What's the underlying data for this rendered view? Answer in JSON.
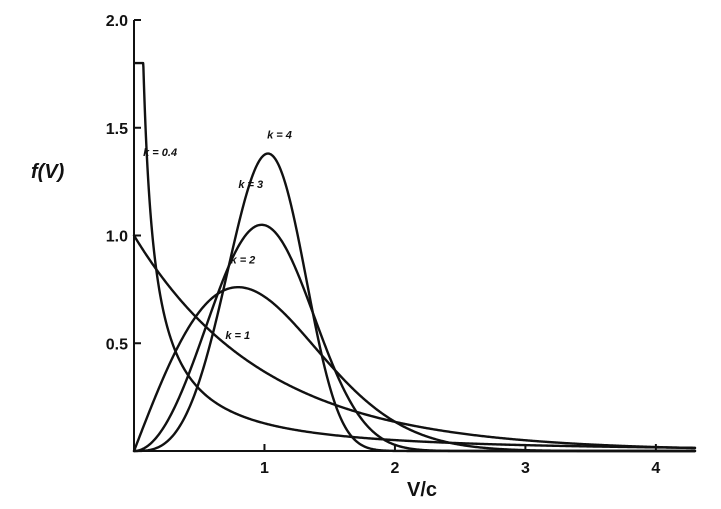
{
  "chart_data": {
    "type": "line",
    "title": "",
    "xlabel": "V/c",
    "ylabel": "f(V)",
    "xlim": [
      0,
      4.3
    ],
    "ylim": [
      0,
      2.0
    ],
    "x_ticks": [
      {
        "value": 1,
        "label": "1"
      },
      {
        "value": 2,
        "label": "2"
      },
      {
        "value": 3,
        "label": "3"
      },
      {
        "value": 4,
        "label": "4"
      }
    ],
    "y_ticks": [
      {
        "value": 0.5,
        "label": "0.5"
      },
      {
        "value": 1.0,
        "label": "1.0"
      },
      {
        "value": 1.5,
        "label": "1.5"
      },
      {
        "value": 2.0,
        "label": "2.0"
      }
    ],
    "grid": false,
    "series": [
      {
        "name": "k = 0.4",
        "k": 0.4
      },
      {
        "name": "k = 1",
        "k": 1
      },
      {
        "name": "k = 2",
        "k": 2
      },
      {
        "name": "k = 3",
        "k": 3
      },
      {
        "name": "k = 4",
        "k": 4
      }
    ],
    "annotations": [
      {
        "text": "k = 0.4",
        "x": 0.07,
        "y": 1.37
      },
      {
        "text": "k = 4",
        "x": 1.02,
        "y": 1.45
      },
      {
        "text": "k = 3",
        "x": 0.8,
        "y": 1.22
      },
      {
        "text": "k = 2",
        "x": 0.74,
        "y": 0.87
      },
      {
        "text": "k = 1",
        "x": 0.7,
        "y": 0.52
      }
    ]
  }
}
